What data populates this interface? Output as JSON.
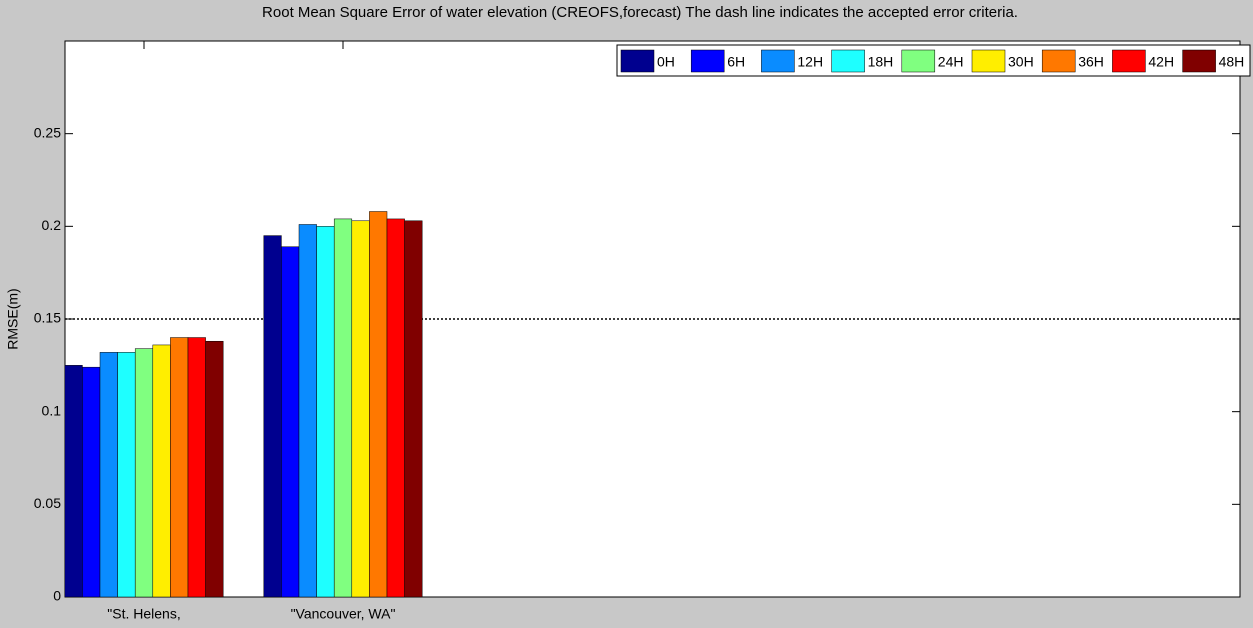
{
  "chart_data": {
    "type": "bar",
    "title": "Root Mean Square Error of water elevation  (CREOFS,forecast)   The dash line indicates the accepted error criteria.",
    "y_label": "RMSE(m)",
    "categories": [
      "\"St. Helens,",
      "\"Vancouver, WA\""
    ],
    "series": [
      {
        "name": "0H",
        "color": "#00008f",
        "values": [
          0.125,
          0.195
        ]
      },
      {
        "name": "6H",
        "color": "#0000ff",
        "values": [
          0.124,
          0.189
        ]
      },
      {
        "name": "12H",
        "color": "#0a8cff",
        "values": [
          0.132,
          0.201
        ]
      },
      {
        "name": "18H",
        "color": "#1effff",
        "values": [
          0.132,
          0.2
        ]
      },
      {
        "name": "24H",
        "color": "#80ff80",
        "values": [
          0.134,
          0.204
        ]
      },
      {
        "name": "30H",
        "color": "#ffee00",
        "values": [
          0.136,
          0.203
        ]
      },
      {
        "name": "36H",
        "color": "#ff7800",
        "values": [
          0.14,
          0.208
        ]
      },
      {
        "name": "42H",
        "color": "#ff0000",
        "values": [
          0.14,
          0.204
        ]
      },
      {
        "name": "48H",
        "color": "#800000",
        "values": [
          0.138,
          0.203
        ]
      }
    ],
    "ylim": [
      0,
      0.3
    ],
    "yticks": [
      0,
      0.05,
      0.1,
      0.15,
      0.2,
      0.25
    ],
    "threshold": 0.15,
    "legend": "top-right"
  }
}
